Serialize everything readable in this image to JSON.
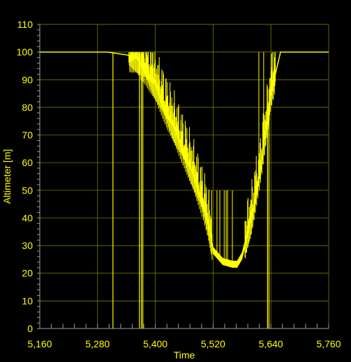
{
  "chart_data": {
    "type": "line",
    "title": "",
    "xlabel": "Time",
    "ylabel": "Altimeter [m]",
    "xlim": [
      5160,
      5760
    ],
    "ylim": [
      0,
      110
    ],
    "x_ticks": [
      "5,160",
      "5,280",
      "5,400",
      "5,520",
      "5,640",
      "5,760"
    ],
    "y_ticks": [
      "0",
      "10",
      "20",
      "30",
      "40",
      "50",
      "60",
      "70",
      "80",
      "90",
      "100",
      "110"
    ],
    "grid": true,
    "colors": {
      "background": "#000000",
      "series": "#ffff00",
      "grid": "#8a8a00",
      "text": "#ffff00"
    },
    "series": [
      {
        "x": [
          5160,
          5200,
          5240,
          5280,
          5300,
          5340,
          5360,
          5380,
          5400,
          5420,
          5440,
          5460,
          5480,
          5500,
          5510,
          5520,
          5540,
          5560,
          5570,
          5580,
          5600,
          5620,
          5640,
          5660,
          5700,
          5760
        ],
        "y": [
          100,
          100,
          100,
          100,
          100,
          99,
          98,
          94,
          88,
          80,
          72,
          64,
          55,
          45,
          38,
          28,
          24,
          23,
          23,
          26,
          40,
          60,
          85,
          100,
          100,
          100
        ]
      }
    ],
    "dropouts_x": [
      5312,
      5367,
      5371,
      5374,
      5633,
      5636
    ],
    "high_spikes_x": [
      5355,
      5364,
      5380,
      5395,
      5615,
      5625,
      5643
    ],
    "mid_spikes_x": [
      5506,
      5511,
      5517,
      5528,
      5534,
      5543,
      5547,
      5550,
      5560
    ]
  }
}
